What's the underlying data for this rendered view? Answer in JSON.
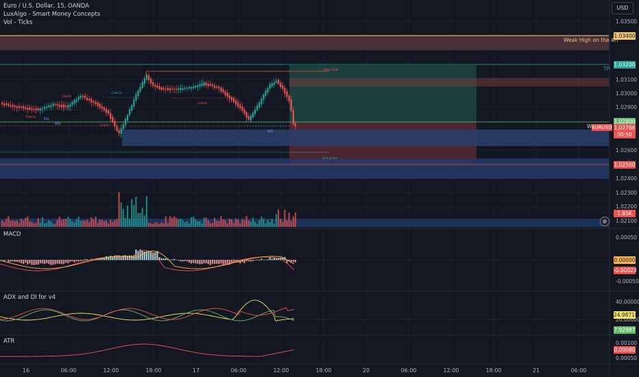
{
  "legend": {
    "symbol_line": "Euro / U.S. Dollar, 15, OANDA",
    "indicator_1": "LuxAlgo - Smart Money Concepts",
    "indicator_2": "Vol - Ticks"
  },
  "toolbar": {
    "currency_button": "USD"
  },
  "price_axis": [
    "1.03500",
    "1.03100",
    "1.03000",
    "1.02900",
    "1.02600",
    "1.02400",
    "1.02300",
    "1.02200",
    "1.02100"
  ],
  "price_tags": {
    "weak_high": "1.03400",
    "tp": "1.03200",
    "entry": "1.02800",
    "last": "1.02766",
    "countdown": "00:50",
    "stop": "1.02500",
    "volume": "1.85K"
  },
  "chart_labels": {
    "weak_high": "Weak High on the 4H",
    "tp": "TP",
    "ticker": "EURUSD",
    "w": "W",
    "choch": "CHoCH",
    "bos": "BOS",
    "weak_high_small": "Weak High",
    "strong_low": "Strong Low",
    "eql": "EQL",
    "mss": "MSS"
  },
  "panes": {
    "macd": {
      "title": "MACD",
      "axis": [
        "0.00050",
        "-0.00050"
      ],
      "tag_zero": "0.00000",
      "tag_value": "-0.00023"
    },
    "adx": {
      "title": "ADX and DI for v4",
      "axis": [
        "40.00000",
        "20.00000"
      ],
      "tag_1": "24.98718",
      "tag_2": "7.92987"
    },
    "atr": {
      "title": "ATR",
      "axis": [
        "0.00100",
        "0.00050"
      ],
      "tag_value": "0.00080"
    }
  },
  "time_axis": [
    "16",
    "06:00",
    "12:00",
    "18:00",
    "17",
    "06:00",
    "12:00",
    "18:00",
    "20",
    "06:00",
    "12:00",
    "18:00",
    "21",
    "06:00"
  ],
  "colors": {
    "bull": "#26a69a",
    "bear": "#ef5350",
    "bg": "#131722",
    "grid": "#1e222d",
    "macd_line": "#ef5350",
    "signal_line": "#ffb74d",
    "adx": "#f5e663",
    "di_plus": "#66bb6a",
    "di_minus": "#ef5350"
  }
}
